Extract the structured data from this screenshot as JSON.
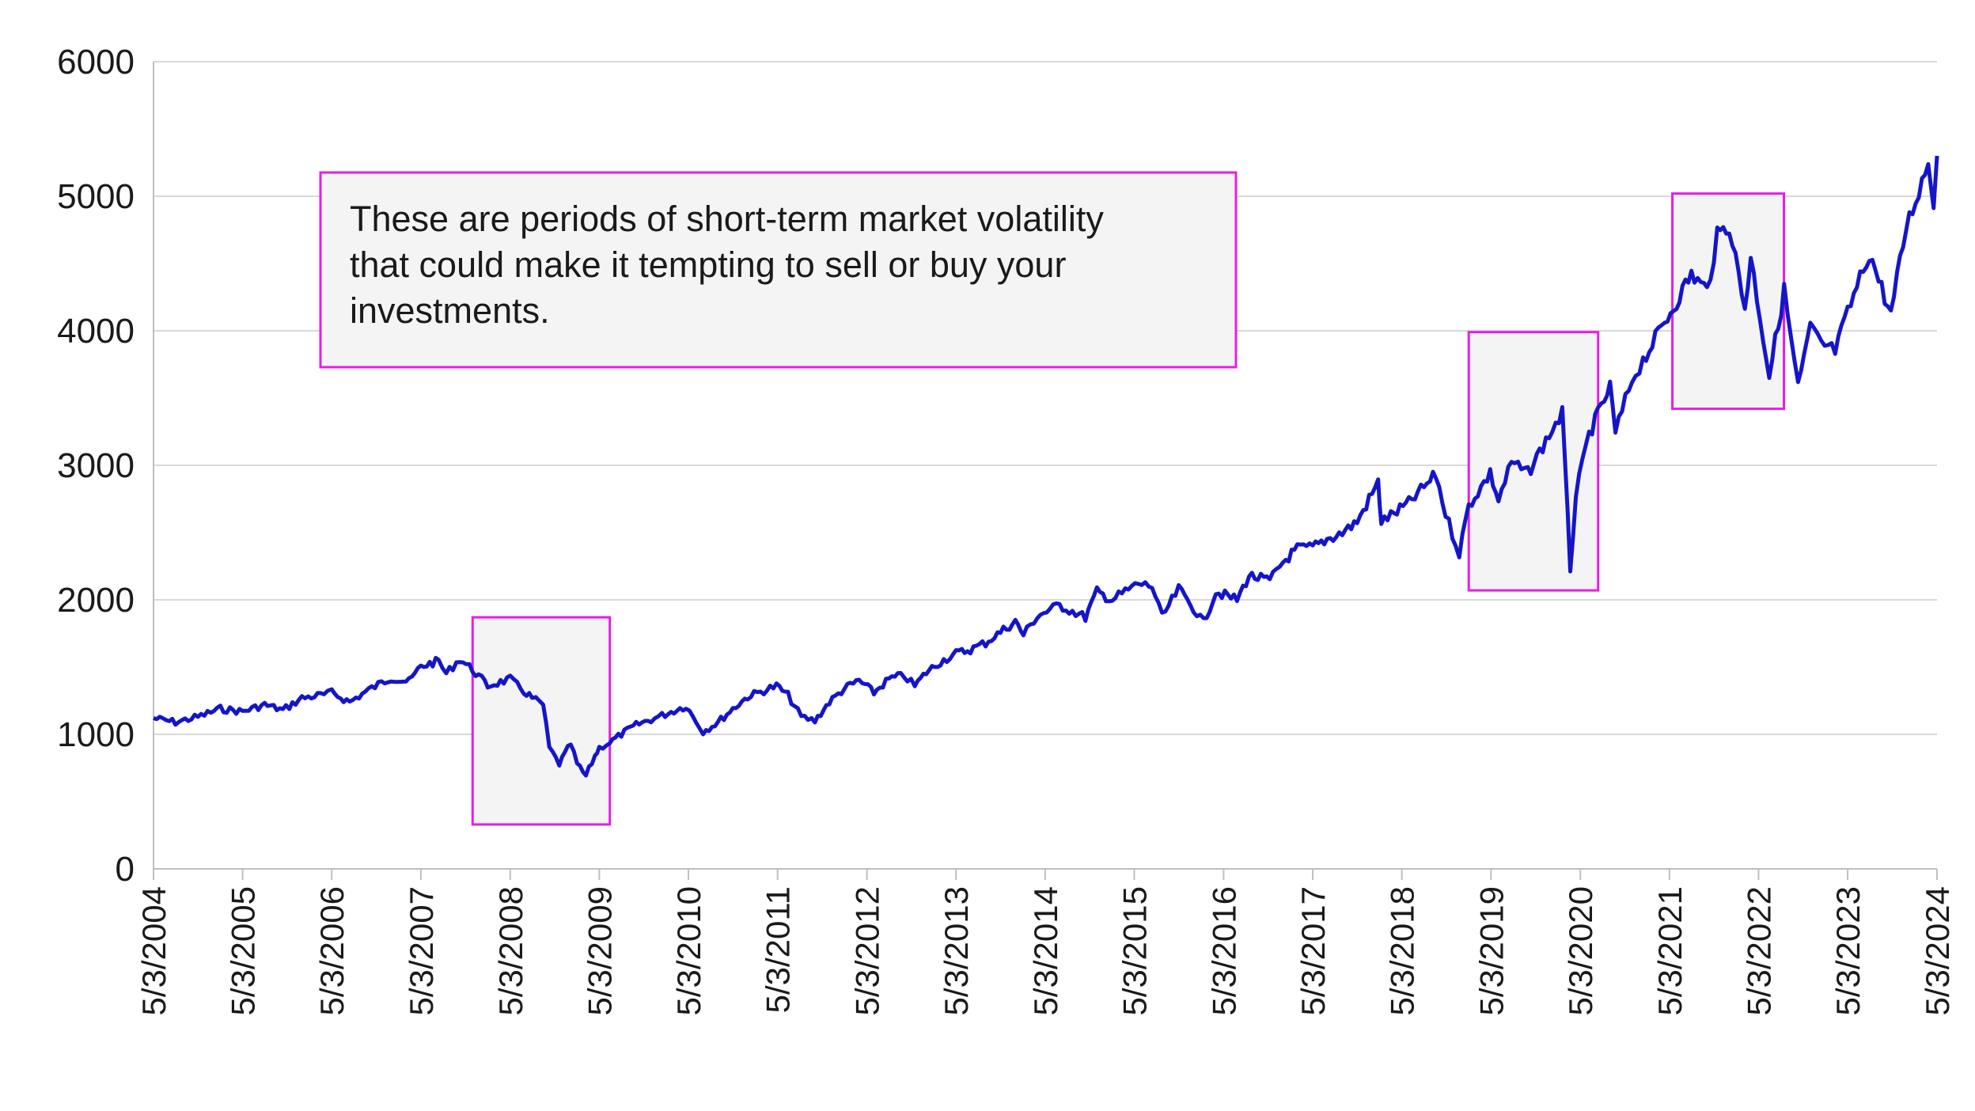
{
  "chart_data": {
    "type": "line",
    "title": "",
    "xlabel": "",
    "ylabel": "",
    "ylim": [
      0,
      6000
    ],
    "yticks": [
      0,
      1000,
      2000,
      3000,
      4000,
      5000,
      6000
    ],
    "ytick_labels": [
      "0",
      "1000",
      "2000",
      "3000",
      "4000",
      "5000",
      "6000"
    ],
    "xlim": [
      "2004-05-03",
      "2024-05-03"
    ],
    "xticks": [
      "5/3/2004",
      "5/3/2005",
      "5/3/2006",
      "5/3/2007",
      "5/3/2008",
      "5/3/2009",
      "5/3/2010",
      "5/3/2011",
      "5/3/2012",
      "5/3/2013",
      "5/3/2014",
      "5/3/2015",
      "5/3/2016",
      "5/3/2017",
      "5/3/2018",
      "5/3/2019",
      "5/3/2020",
      "5/3/2021",
      "5/3/2022",
      "5/3/2023",
      "5/3/2024"
    ],
    "grid": "horizontal",
    "legend": "none",
    "colors": {
      "series": "#1515c8",
      "highlight_border": "#e61ee6",
      "highlight_fill": "#f4f4f4",
      "grid": "#d9d9d9",
      "axis": "#bfbfbf"
    },
    "series": [
      {
        "x": [
          "2004-05-03",
          "2004-08-01",
          "2004-11-01",
          "2005-02-01",
          "2005-05-03",
          "2005-08-01",
          "2005-10-15",
          "2006-01-01",
          "2006-04-01",
          "2006-05-03",
          "2006-07-15",
          "2006-10-01",
          "2007-01-01",
          "2007-03-15",
          "2007-05-03",
          "2007-07-15",
          "2007-08-15",
          "2007-10-09",
          "2007-12-01",
          "2008-02-01",
          "2008-05-03",
          "2008-06-15",
          "2008-08-01",
          "2008-09-15",
          "2008-10-10",
          "2008-11-20",
          "2009-01-06",
          "2009-02-01",
          "2009-03-09",
          "2009-04-15",
          "2009-05-03",
          "2009-06-15",
          "2009-08-01",
          "2009-10-01",
          "2009-12-01",
          "2010-01-15",
          "2010-04-23",
          "2010-07-02",
          "2010-09-01",
          "2010-11-01",
          "2011-01-01",
          "2011-04-29",
          "2011-06-15",
          "2011-08-08",
          "2011-10-03",
          "2011-12-01",
          "2012-02-01",
          "2012-04-01",
          "2012-06-01",
          "2012-08-01",
          "2012-10-01",
          "2012-11-15",
          "2013-01-01",
          "2013-03-01",
          "2013-05-03",
          "2013-07-01",
          "2013-09-01",
          "2013-11-01",
          "2014-01-01",
          "2014-02-03",
          "2014-04-01",
          "2014-07-01",
          "2014-10-15",
          "2014-12-01",
          "2015-02-01",
          "2015-05-20",
          "2015-07-15",
          "2015-08-25",
          "2015-11-01",
          "2016-01-01",
          "2016-02-11",
          "2016-04-01",
          "2016-06-27",
          "2016-08-15",
          "2016-11-08",
          "2017-01-01",
          "2017-03-01",
          "2017-05-03",
          "2017-07-01",
          "2017-09-01",
          "2017-11-01",
          "2018-01-26",
          "2018-02-08",
          "2018-04-01",
          "2018-06-01",
          "2018-09-20",
          "2018-10-29",
          "2018-12-24",
          "2019-02-01",
          "2019-04-30",
          "2019-06-03",
          "2019-07-26",
          "2019-10-01",
          "2019-12-01",
          "2020-02-19",
          "2020-03-23",
          "2020-04-15",
          "2020-06-08",
          "2020-09-02",
          "2020-09-24",
          "2020-12-01",
          "2021-01-15",
          "2021-04-01",
          "2021-06-01",
          "2021-08-01",
          "2021-10-04",
          "2021-11-15",
          "2022-01-03",
          "2022-03-08",
          "2022-04-01",
          "2022-06-16",
          "2022-08-16",
          "2022-10-12",
          "2022-12-01",
          "2023-01-15",
          "2023-03-13",
          "2023-05-03",
          "2023-07-31",
          "2023-10-27",
          "2023-12-29",
          "2024-03-28",
          "2024-04-19",
          "2024-05-03"
        ],
        "values": [
          1120,
          1090,
          1130,
          1190,
          1170,
          1220,
          1180,
          1270,
          1295,
          1310,
          1240,
          1330,
          1420,
          1390,
          1505,
          1545,
          1450,
          1560,
          1480,
          1360,
          1410,
          1340,
          1270,
          1220,
          900,
          780,
          930,
          780,
          690,
          840,
          900,
          940,
          1000,
          1070,
          1110,
          1140,
          1210,
          1020,
          1090,
          1190,
          1280,
          1360,
          1290,
          1130,
          1100,
          1240,
          1340,
          1400,
          1310,
          1410,
          1440,
          1360,
          1460,
          1540,
          1600,
          1630,
          1680,
          1760,
          1840,
          1740,
          1880,
          1960,
          1870,
          2060,
          2000,
          2120,
          2100,
          1870,
          2080,
          1940,
          1830,
          2060,
          2000,
          2180,
          2140,
          2280,
          2380,
          2390,
          2450,
          2500,
          2580,
          2870,
          2580,
          2640,
          2720,
          2930,
          2640,
          2350,
          2700,
          2940,
          2740,
          3020,
          2940,
          3140,
          3390,
          2230,
          2780,
          3230,
          3580,
          3240,
          3640,
          3780,
          4020,
          4220,
          4420,
          4300,
          4700,
          4790,
          4170,
          4550,
          3670,
          4300,
          3580,
          4020,
          3900,
          3850,
          4130,
          4580,
          4120,
          4770,
          5250,
          4970,
          5300
        ]
      }
    ],
    "highlight_periods": [
      {
        "start": "2007-12-01",
        "end": "2009-06-15",
        "y_min": 330,
        "y_max": 1870
      },
      {
        "start": "2019-02-01",
        "end": "2020-07-15",
        "y_min": 2070,
        "y_max": 3990
      },
      {
        "start": "2021-05-15",
        "end": "2022-08-15",
        "y_min": 3420,
        "y_max": 5020
      }
    ],
    "annotation": {
      "text_lines": [
        "These are periods of short-term market volatility",
        "that could make it tempting to sell or buy your",
        "investments."
      ]
    }
  }
}
